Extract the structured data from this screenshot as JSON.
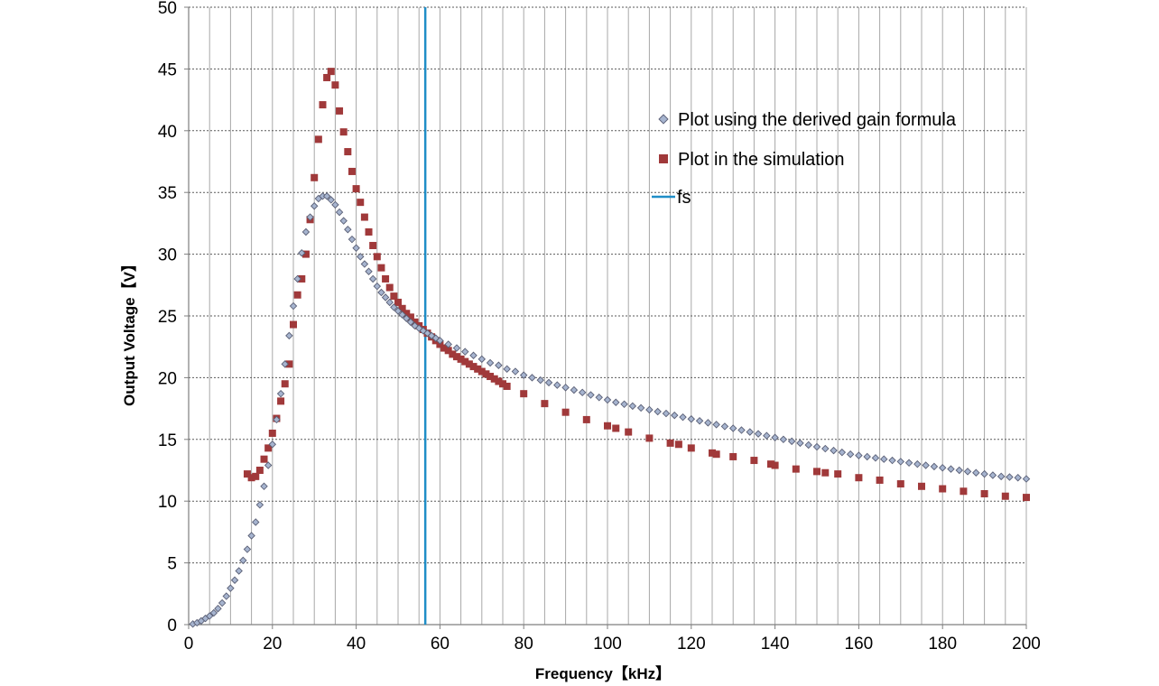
{
  "chart_data": {
    "type": "scatter",
    "xlabel": "Frequency【kHz】",
    "ylabel": "Output Voltage【V】",
    "xlim": [
      0,
      200
    ],
    "ylim": [
      0,
      50
    ],
    "x_ticks": [
      0,
      20,
      40,
      60,
      80,
      100,
      120,
      140,
      160,
      180,
      200
    ],
    "y_ticks": [
      0,
      5,
      10,
      15,
      20,
      25,
      30,
      35,
      40,
      45,
      50
    ],
    "grid": true,
    "legend_position": "upper-right",
    "series": [
      {
        "name": "Plot using the derived gain formula",
        "marker": "diamond",
        "color": "#a6b4cf",
        "edge_color": "#5a5f75",
        "points": [
          [
            1,
            0.05
          ],
          [
            2,
            0.15
          ],
          [
            3,
            0.3
          ],
          [
            4,
            0.5
          ],
          [
            5,
            0.7
          ],
          [
            6,
            0.95
          ],
          [
            7,
            1.3
          ],
          [
            8,
            1.75
          ],
          [
            9,
            2.3
          ],
          [
            10,
            2.95
          ],
          [
            11,
            3.6
          ],
          [
            12,
            4.35
          ],
          [
            13,
            5.2
          ],
          [
            14,
            6.1
          ],
          [
            15,
            7.2
          ],
          [
            16,
            8.3
          ],
          [
            17,
            9.7
          ],
          [
            18,
            11.2
          ],
          [
            19,
            12.9
          ],
          [
            20,
            14.6
          ],
          [
            21,
            16.6
          ],
          [
            22,
            18.7
          ],
          [
            23,
            21.1
          ],
          [
            24,
            23.4
          ],
          [
            25,
            25.8
          ],
          [
            26,
            28.0
          ],
          [
            27,
            30.1
          ],
          [
            28,
            31.8
          ],
          [
            29,
            33.0
          ],
          [
            30,
            33.9
          ],
          [
            31,
            34.5
          ],
          [
            32,
            34.7
          ],
          [
            33,
            34.7
          ],
          [
            34,
            34.4
          ],
          [
            35,
            34.0
          ],
          [
            36,
            33.4
          ],
          [
            37,
            32.7
          ],
          [
            38,
            32.0
          ],
          [
            39,
            31.2
          ],
          [
            40,
            30.5
          ],
          [
            41,
            29.8
          ],
          [
            42,
            29.2
          ],
          [
            43,
            28.6
          ],
          [
            44,
            28.0
          ],
          [
            45,
            27.4
          ],
          [
            46,
            26.9
          ],
          [
            47,
            26.5
          ],
          [
            48,
            26.1
          ],
          [
            49,
            25.7
          ],
          [
            50,
            25.4
          ],
          [
            51,
            25.1
          ],
          [
            52,
            24.8
          ],
          [
            53,
            24.5
          ],
          [
            54,
            24.2
          ],
          [
            55,
            24.0
          ],
          [
            56,
            23.8
          ],
          [
            57,
            23.6
          ],
          [
            58,
            23.4
          ],
          [
            59,
            23.2
          ],
          [
            60,
            23.0
          ],
          [
            62,
            22.7
          ],
          [
            64,
            22.4
          ],
          [
            66,
            22.1
          ],
          [
            68,
            21.8
          ],
          [
            70,
            21.5
          ],
          [
            72,
            21.2
          ],
          [
            74,
            21.0
          ],
          [
            76,
            20.7
          ],
          [
            78,
            20.5
          ],
          [
            80,
            20.2
          ],
          [
            82,
            20.0
          ],
          [
            84,
            19.8
          ],
          [
            86,
            19.6
          ],
          [
            88,
            19.4
          ],
          [
            90,
            19.2
          ],
          [
            92,
            19.0
          ],
          [
            94,
            18.8
          ],
          [
            96,
            18.6
          ],
          [
            98,
            18.4
          ],
          [
            100,
            18.2
          ],
          [
            102,
            18.0
          ],
          [
            104,
            17.85
          ],
          [
            106,
            17.7
          ],
          [
            108,
            17.55
          ],
          [
            110,
            17.4
          ],
          [
            112,
            17.25
          ],
          [
            114,
            17.1
          ],
          [
            116,
            16.95
          ],
          [
            118,
            16.8
          ],
          [
            120,
            16.65
          ],
          [
            122,
            16.5
          ],
          [
            124,
            16.35
          ],
          [
            126,
            16.2
          ],
          [
            128,
            16.05
          ],
          [
            130,
            15.9
          ],
          [
            132,
            15.75
          ],
          [
            134,
            15.6
          ],
          [
            136,
            15.45
          ],
          [
            138,
            15.3
          ],
          [
            140,
            15.15
          ],
          [
            142,
            15.0
          ],
          [
            144,
            14.85
          ],
          [
            146,
            14.7
          ],
          [
            148,
            14.55
          ],
          [
            150,
            14.4
          ],
          [
            152,
            14.25
          ],
          [
            154,
            14.1
          ],
          [
            156,
            13.95
          ],
          [
            158,
            13.8
          ],
          [
            160,
            13.7
          ],
          [
            162,
            13.6
          ],
          [
            164,
            13.5
          ],
          [
            166,
            13.4
          ],
          [
            168,
            13.3
          ],
          [
            170,
            13.2
          ],
          [
            172,
            13.1
          ],
          [
            174,
            13.0
          ],
          [
            176,
            12.9
          ],
          [
            178,
            12.8
          ],
          [
            180,
            12.7
          ],
          [
            182,
            12.6
          ],
          [
            184,
            12.5
          ],
          [
            186,
            12.4
          ],
          [
            188,
            12.3
          ],
          [
            190,
            12.2
          ],
          [
            192,
            12.1
          ],
          [
            194,
            12.0
          ],
          [
            196,
            11.95
          ],
          [
            198,
            11.9
          ],
          [
            200,
            11.8
          ]
        ]
      },
      {
        "name": "Plot in the simulation",
        "marker": "square",
        "color": "#a0393a",
        "points": [
          [
            14,
            12.2
          ],
          [
            15,
            11.9
          ],
          [
            16,
            12.0
          ],
          [
            17,
            12.5
          ],
          [
            18,
            13.4
          ],
          [
            19,
            14.3
          ],
          [
            20,
            15.5
          ],
          [
            21,
            16.7
          ],
          [
            22,
            18.1
          ],
          [
            23,
            19.5
          ],
          [
            24,
            21.1
          ],
          [
            25,
            24.3
          ],
          [
            26,
            26.7
          ],
          [
            27,
            28.0
          ],
          [
            28,
            30.0
          ],
          [
            29,
            32.8
          ],
          [
            30,
            36.2
          ],
          [
            31,
            39.3
          ],
          [
            32,
            42.1
          ],
          [
            33,
            44.3
          ],
          [
            34,
            44.8
          ],
          [
            35,
            43.7
          ],
          [
            36,
            41.6
          ],
          [
            37,
            39.9
          ],
          [
            38,
            38.3
          ],
          [
            39,
            36.7
          ],
          [
            40,
            35.3
          ],
          [
            41,
            34.2
          ],
          [
            42,
            33.0
          ],
          [
            43,
            31.8
          ],
          [
            44,
            30.7
          ],
          [
            45,
            29.8
          ],
          [
            46,
            28.9
          ],
          [
            47,
            28.0
          ],
          [
            48,
            27.3
          ],
          [
            49,
            26.6
          ],
          [
            50,
            26.1
          ],
          [
            51,
            25.6
          ],
          [
            52,
            25.2
          ],
          [
            53,
            24.9
          ],
          [
            54,
            24.5
          ],
          [
            55,
            24.2
          ],
          [
            56,
            23.9
          ],
          [
            57,
            23.6
          ],
          [
            58,
            23.3
          ],
          [
            59,
            23.0
          ],
          [
            60,
            22.7
          ],
          [
            61,
            22.4
          ],
          [
            62,
            22.2
          ],
          [
            63,
            21.9
          ],
          [
            64,
            21.7
          ],
          [
            65,
            21.5
          ],
          [
            66,
            21.3
          ],
          [
            67,
            21.1
          ],
          [
            68,
            20.9
          ],
          [
            69,
            20.7
          ],
          [
            70,
            20.5
          ],
          [
            71,
            20.3
          ],
          [
            72,
            20.1
          ],
          [
            73,
            19.9
          ],
          [
            74,
            19.7
          ],
          [
            75,
            19.5
          ],
          [
            76,
            19.3
          ],
          [
            80,
            18.7
          ],
          [
            85,
            17.9
          ],
          [
            90,
            17.2
          ],
          [
            95,
            16.6
          ],
          [
            100,
            16.1
          ],
          [
            102,
            15.9
          ],
          [
            105,
            15.6
          ],
          [
            110,
            15.1
          ],
          [
            115,
            14.7
          ],
          [
            117,
            14.6
          ],
          [
            120,
            14.3
          ],
          [
            125,
            13.9
          ],
          [
            126,
            13.8
          ],
          [
            130,
            13.6
          ],
          [
            135,
            13.3
          ],
          [
            139,
            13.0
          ],
          [
            140,
            12.9
          ],
          [
            145,
            12.6
          ],
          [
            150,
            12.4
          ],
          [
            152,
            12.3
          ],
          [
            155,
            12.2
          ],
          [
            160,
            11.9
          ],
          [
            165,
            11.7
          ],
          [
            170,
            11.4
          ],
          [
            175,
            11.2
          ],
          [
            180,
            11.0
          ],
          [
            185,
            10.8
          ],
          [
            190,
            10.6
          ],
          [
            195,
            10.4
          ],
          [
            200,
            10.3
          ]
        ]
      },
      {
        "name": "fs",
        "marker": "line",
        "color": "#1f8ec7",
        "x": 56.5
      }
    ]
  }
}
